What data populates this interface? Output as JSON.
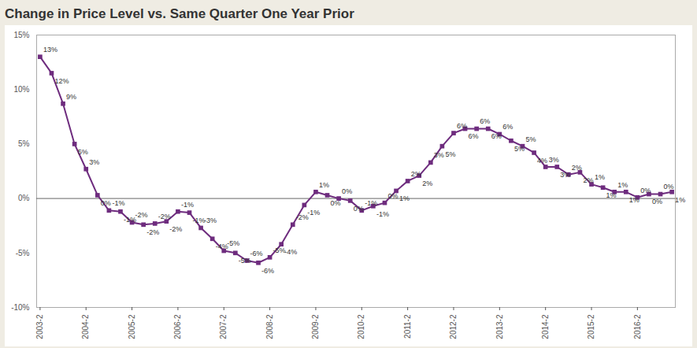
{
  "chart_data": {
    "type": "line",
    "title": "Change in Price Level vs. Same Quarter One Year Prior",
    "categories": [
      "2003-2",
      null,
      null,
      null,
      "2004-2",
      null,
      null,
      null,
      "2005-2",
      null,
      null,
      null,
      "2006-2",
      null,
      null,
      null,
      "2007-2",
      null,
      null,
      null,
      "2008-2",
      null,
      null,
      null,
      "2009-2",
      null,
      null,
      null,
      "2010-2",
      null,
      null,
      null,
      "2011-2",
      null,
      null,
      null,
      "2012-2",
      null,
      null,
      null,
      "2013-2",
      null,
      null,
      null,
      "2014-2",
      null,
      null,
      null,
      "2015-2",
      null,
      null,
      null,
      "2016-2",
      null,
      null,
      null
    ],
    "values": [
      13,
      11.5,
      8.7,
      5,
      2.7,
      0.3,
      -1.1,
      -1.2,
      -2.2,
      -2.4,
      -2.3,
      -2.1,
      -1.2,
      -1.3,
      -2.7,
      -3.7,
      -4.8,
      -5,
      -5.7,
      -5.9,
      -5.4,
      -4.2,
      -2.4,
      -0.6,
      0.6,
      0.3,
      0,
      -0.2,
      -1.1,
      -0.7,
      -0.4,
      0.7,
      1.6,
      2.1,
      3.3,
      4.8,
      6,
      6.4,
      6.4,
      6.4,
      5.9,
      5.3,
      4.8,
      4.2,
      2.9,
      2.9,
      2.2,
      2.4,
      1.3,
      1,
      0.6,
      0.6,
      0.1,
      0.4,
      0.4,
      0.6
    ],
    "value_labels": [
      "13%",
      "12%",
      "9%",
      "5%",
      "3%",
      "0%",
      "-1%",
      "-1%",
      "-2%",
      "-2%",
      "-2%",
      "-2%",
      "-1%",
      "-1%",
      "-3%",
      "-4%",
      "-5%",
      "-5%",
      "-6%",
      "-6%",
      "-5%",
      "-4%",
      "-2%",
      "-1%",
      "1%",
      "0%",
      "0%",
      "0%",
      "-1%",
      "-1%",
      "0%",
      "1%",
      "2%",
      "2%",
      "3%",
      "5%",
      "6%",
      "6%",
      "6%",
      "6%",
      "6%",
      "5%",
      "5%",
      "4%",
      "3%",
      "3%",
      "2%",
      "2%",
      "1%",
      "1%",
      "1%",
      "1%",
      "0%",
      "0%",
      "0%",
      "1%"
    ],
    "color": "#6e2c7e",
    "marker": "square",
    "data_labels": true,
    "ylim": [
      -10,
      15
    ],
    "yticks": [
      {
        "value": -10,
        "label": "-10%"
      },
      {
        "value": -5,
        "label": "-5%"
      },
      {
        "value": 0,
        "label": "0%"
      },
      {
        "value": 5,
        "label": "5%"
      },
      {
        "value": 10,
        "label": "10%"
      },
      {
        "value": 15,
        "label": "15%"
      }
    ],
    "grid": false
  }
}
